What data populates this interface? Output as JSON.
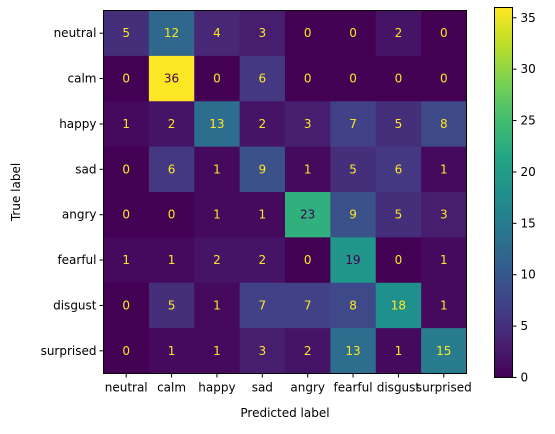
{
  "chart_data": {
    "type": "heatmap",
    "title": "",
    "xlabel": "Predicted label",
    "ylabel": "True label",
    "x_categories": [
      "neutral",
      "calm",
      "happy",
      "sad",
      "angry",
      "fearful",
      "disgust",
      "surprised"
    ],
    "y_categories": [
      "neutral",
      "calm",
      "happy",
      "sad",
      "angry",
      "fearful",
      "disgust",
      "surprised"
    ],
    "values": [
      [
        5,
        12,
        4,
        3,
        0,
        0,
        2,
        0
      ],
      [
        0,
        36,
        0,
        6,
        0,
        0,
        0,
        0
      ],
      [
        1,
        2,
        13,
        2,
        3,
        7,
        5,
        8
      ],
      [
        0,
        6,
        1,
        9,
        1,
        5,
        6,
        1
      ],
      [
        0,
        0,
        1,
        1,
        23,
        9,
        5,
        3
      ],
      [
        1,
        1,
        2,
        2,
        0,
        19,
        0,
        1
      ],
      [
        0,
        5,
        1,
        7,
        7,
        8,
        18,
        1
      ],
      [
        0,
        1,
        1,
        3,
        2,
        13,
        1,
        15
      ]
    ],
    "colormap": "viridis",
    "value_range": [
      0,
      36
    ],
    "colorbar_ticks": [
      0,
      5,
      10,
      15,
      20,
      25,
      30,
      35
    ],
    "annotation_colors": {
      "light": "#fde725",
      "dark": "#440154"
    }
  }
}
